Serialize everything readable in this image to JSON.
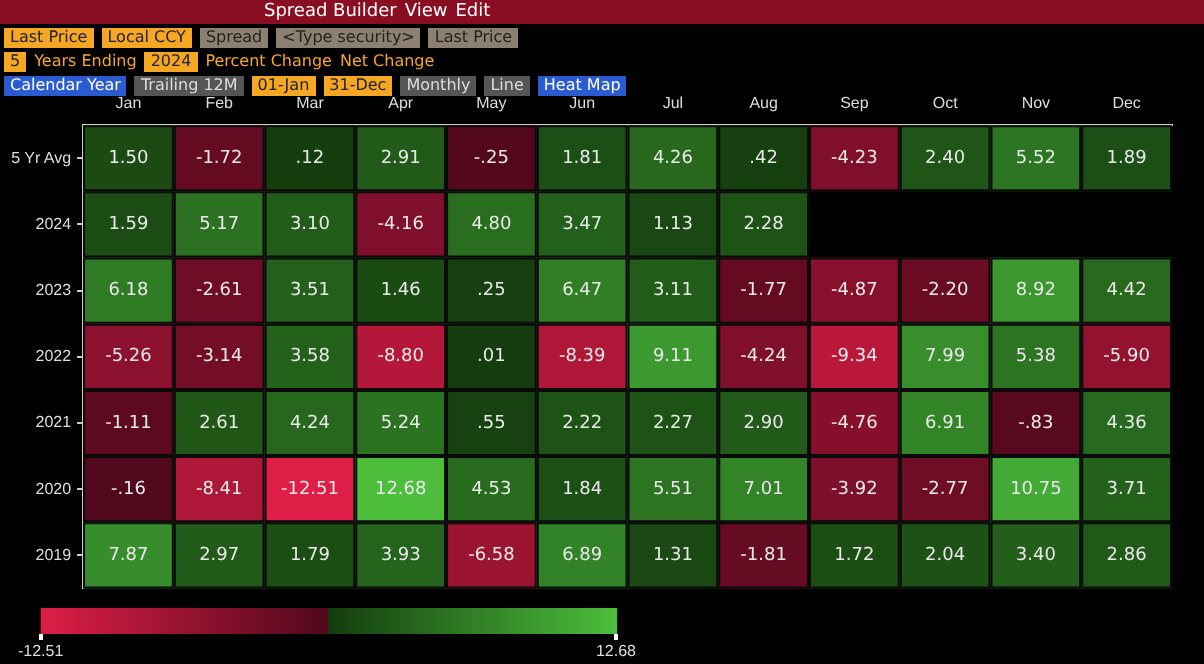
{
  "chart_data": {
    "type": "heatmap",
    "annotations": [
      "Spread Builder",
      "View",
      "Edit",
      "Last Price",
      "Local CCY",
      "Spread",
      "<Type security>",
      "Last Price",
      "5",
      "Years Ending",
      "2024",
      "Percent Change",
      "Net Change",
      "Calendar Year",
      "Trailing 12M",
      "01-Jan",
      "31-Dec",
      "Monthly",
      "Line",
      "Heat Map"
    ],
    "categories": [
      "Jan",
      "Feb",
      "Mar",
      "Apr",
      "May",
      "Jun",
      "Jul",
      "Aug",
      "Sep",
      "Oct",
      "Nov",
      "Dec"
    ],
    "y_categories": [
      "5 Yr Avg",
      "2024",
      "2023",
      "2022",
      "2021",
      "2020",
      "2019"
    ],
    "cells": [
      [
        1.5,
        -1.72,
        0.12,
        2.91,
        -0.25,
        1.81,
        4.26,
        0.42,
        -4.23,
        2.4,
        5.52,
        1.89
      ],
      [
        1.59,
        5.17,
        3.1,
        -4.16,
        4.8,
        3.47,
        1.13,
        2.28,
        null,
        null,
        null,
        null
      ],
      [
        6.18,
        -2.61,
        3.51,
        1.46,
        0.25,
        6.47,
        3.11,
        -1.77,
        -4.87,
        -2.2,
        8.92,
        4.42
      ],
      [
        -5.26,
        -3.14,
        3.58,
        -8.8,
        0.01,
        -8.39,
        9.11,
        -4.24,
        -9.34,
        7.99,
        5.38,
        -5.9
      ],
      [
        -1.11,
        2.61,
        4.24,
        5.24,
        0.55,
        2.22,
        2.27,
        2.9,
        -4.76,
        6.91,
        -0.83,
        4.36
      ],
      [
        -0.16,
        -8.41,
        -12.51,
        12.68,
        4.53,
        1.84,
        5.51,
        7.01,
        -3.92,
        -2.77,
        10.75,
        3.71
      ],
      [
        7.87,
        2.97,
        1.79,
        3.93,
        -6.58,
        6.89,
        1.31,
        -1.81,
        1.72,
        2.04,
        3.4,
        2.86
      ]
    ],
    "cell_labels": [
      [
        "1.50",
        "-1.72",
        ".12",
        "2.91",
        "-.25",
        "1.81",
        "4.26",
        ".42",
        "-4.23",
        "2.40",
        "5.52",
        "1.89"
      ],
      [
        "1.59",
        "5.17",
        "3.10",
        "-4.16",
        "4.80",
        "3.47",
        "1.13",
        "2.28",
        null,
        null,
        null,
        null
      ],
      [
        "6.18",
        "-2.61",
        "3.51",
        "1.46",
        ".25",
        "6.47",
        "3.11",
        "-1.77",
        "-4.87",
        "-2.20",
        "8.92",
        "4.42"
      ],
      [
        "-5.26",
        "-3.14",
        "3.58",
        "-8.80",
        ".01",
        "-8.39",
        "9.11",
        "-4.24",
        "-9.34",
        "7.99",
        "5.38",
        "-5.90"
      ],
      [
        "-1.11",
        "2.61",
        "4.24",
        "5.24",
        ".55",
        "2.22",
        "2.27",
        "2.90",
        "-4.76",
        "6.91",
        "-.83",
        "4.36"
      ],
      [
        "-.16",
        "-8.41",
        "-12.51",
        "12.68",
        "4.53",
        "1.84",
        "5.51",
        "7.01",
        "-3.92",
        "-2.77",
        "10.75",
        "3.71"
      ],
      [
        "7.87",
        "2.97",
        "1.79",
        "3.93",
        "-6.58",
        "6.89",
        "1.31",
        "-1.81",
        "1.72",
        "2.04",
        "3.40",
        "2.86"
      ]
    ],
    "clim": [
      -12.51,
      12.68
    ],
    "cticks": [
      -12.51,
      12.68
    ],
    "grid": false,
    "legend": false
  }
}
